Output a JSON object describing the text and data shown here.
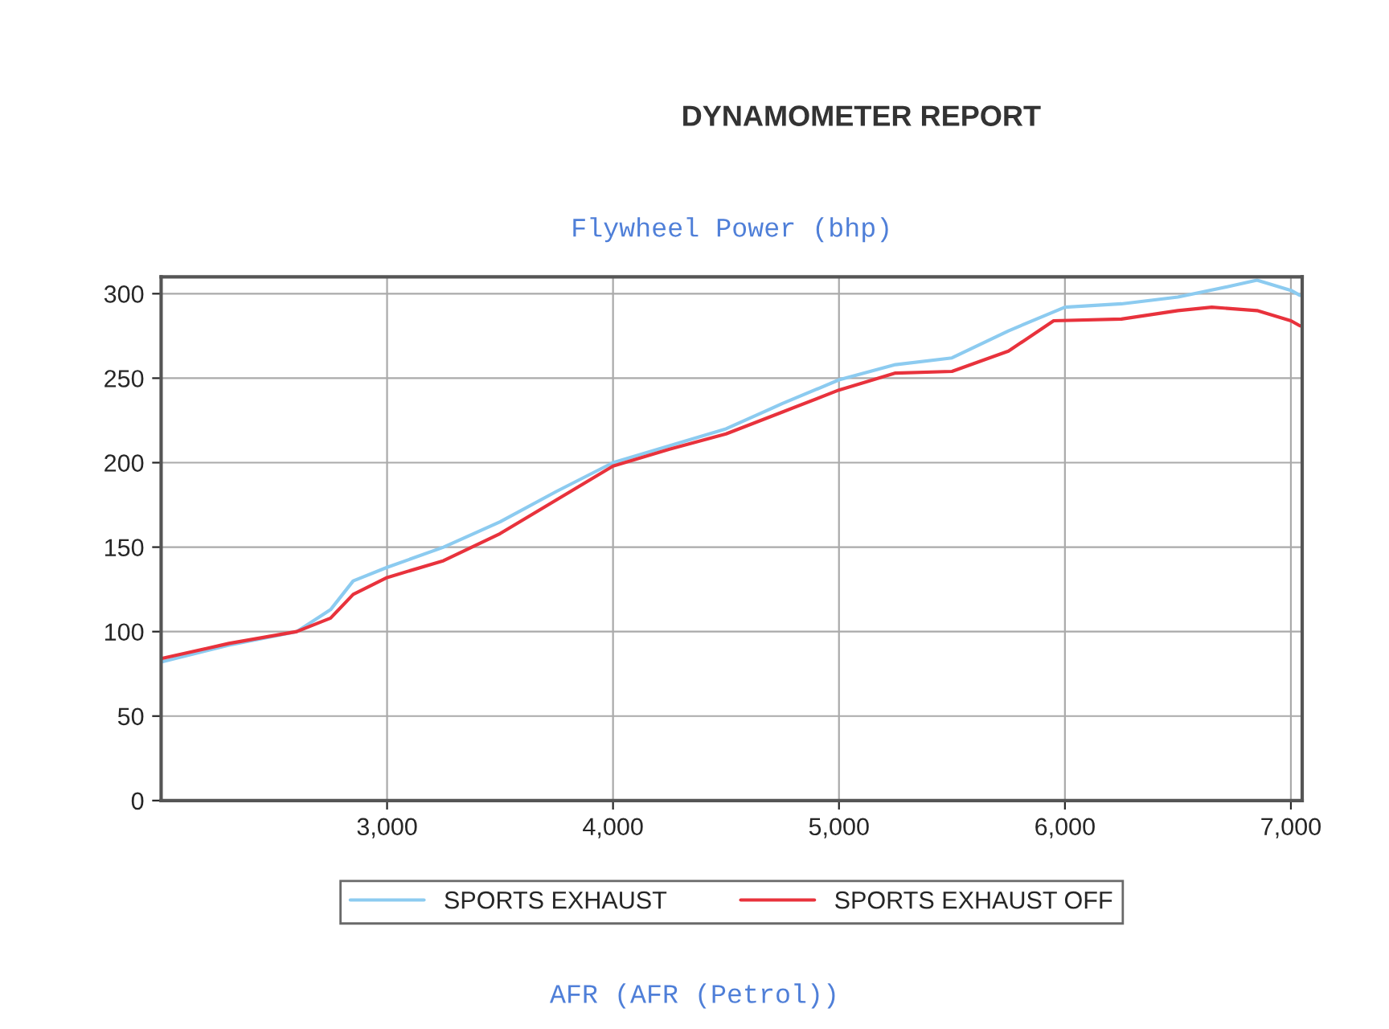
{
  "chart_data": {
    "type": "line",
    "title": "DYNAMOMETER REPORT",
    "subtitle": "Flywheel Power (bhp)",
    "annotations": [
      "AFR (AFR (Petrol))"
    ],
    "xlim": [
      2000,
      7050
    ],
    "xticks": [
      {
        "value": 3000,
        "label": "3,000"
      },
      {
        "value": 4000,
        "label": "4,000"
      },
      {
        "value": 5000,
        "label": "5,000"
      },
      {
        "value": 6000,
        "label": "6,000"
      },
      {
        "value": 7000,
        "label": "7,000"
      }
    ],
    "ylim": [
      0,
      310
    ],
    "yticks": [
      0,
      50,
      100,
      150,
      200,
      250,
      300
    ],
    "grid": true,
    "legend": "bottom",
    "marker": "none",
    "line_style": "solid",
    "series": [
      {
        "name": "SPORTS EXHAUST",
        "color": "#8ccbf0",
        "x": [
          2000,
          2300,
          2600,
          2750,
          2850,
          3000,
          3250,
          3500,
          3750,
          4000,
          4250,
          4500,
          4750,
          5000,
          5250,
          5500,
          5750,
          6000,
          6250,
          6500,
          6750,
          6850,
          7000,
          7040
        ],
        "values": [
          82,
          92,
          100,
          113,
          130,
          138,
          150,
          165,
          183,
          200,
          210,
          220,
          235,
          249,
          258,
          262,
          278,
          292,
          294,
          298,
          305,
          308,
          302,
          299
        ]
      },
      {
        "name": "SPORTS EXHAUST OFF",
        "color": "#e8323c",
        "x": [
          2000,
          2300,
          2600,
          2750,
          2850,
          3000,
          3250,
          3500,
          3750,
          4000,
          4250,
          4500,
          4750,
          5000,
          5250,
          5500,
          5750,
          5950,
          6250,
          6500,
          6650,
          6850,
          7000,
          7040
        ],
        "values": [
          84,
          93,
          100,
          108,
          122,
          132,
          142,
          158,
          178,
          198,
          208,
          217,
          230,
          243,
          253,
          254,
          266,
          284,
          285,
          290,
          292,
          290,
          284,
          281
        ]
      }
    ]
  }
}
